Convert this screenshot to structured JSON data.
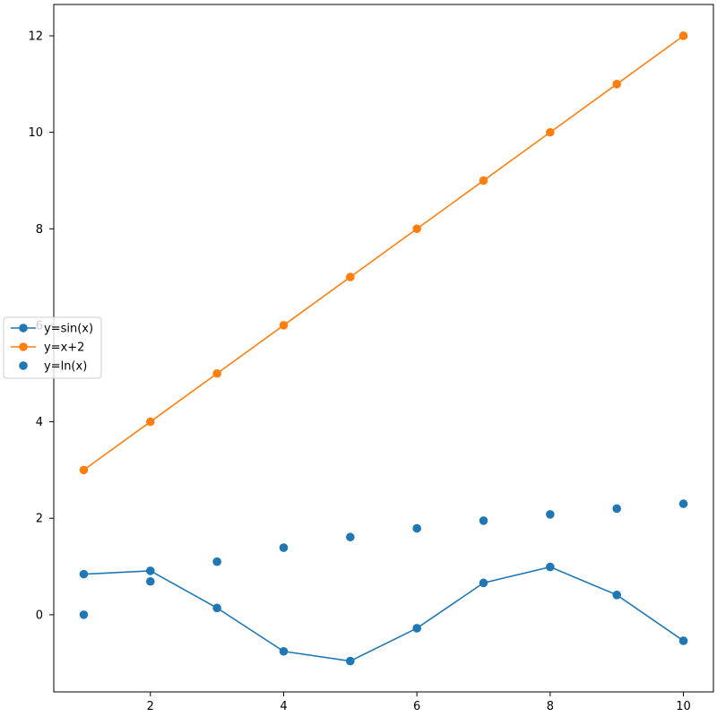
{
  "chart_data": {
    "type": "line",
    "x": [
      1,
      2,
      3,
      4,
      5,
      6,
      7,
      8,
      9,
      10
    ],
    "xlim": [
      0.55,
      10.45
    ],
    "ylim": [
      -1.6,
      12.65
    ],
    "xticks": [
      2,
      4,
      6,
      8,
      10
    ],
    "yticks": [
      0,
      2,
      4,
      6,
      8,
      10,
      12
    ],
    "grid": false,
    "legend_position": "center-left",
    "series": [
      {
        "name": "y=sin(x)",
        "style": "line-marker",
        "color": "#1f77b4",
        "values": [
          0.84,
          0.91,
          0.14,
          -0.76,
          -0.96,
          -0.28,
          0.66,
          0.99,
          0.41,
          -0.54
        ]
      },
      {
        "name": "y=x+2",
        "style": "line-marker",
        "color": "#ff7f0e",
        "values": [
          3,
          4,
          5,
          6,
          7,
          8,
          9,
          10,
          11,
          12
        ]
      },
      {
        "name": "y=ln(x)",
        "style": "scatter",
        "color": "#1f77b4",
        "values": [
          0,
          0.69,
          1.1,
          1.39,
          1.61,
          1.79,
          1.95,
          2.08,
          2.2,
          2.3
        ]
      }
    ]
  }
}
